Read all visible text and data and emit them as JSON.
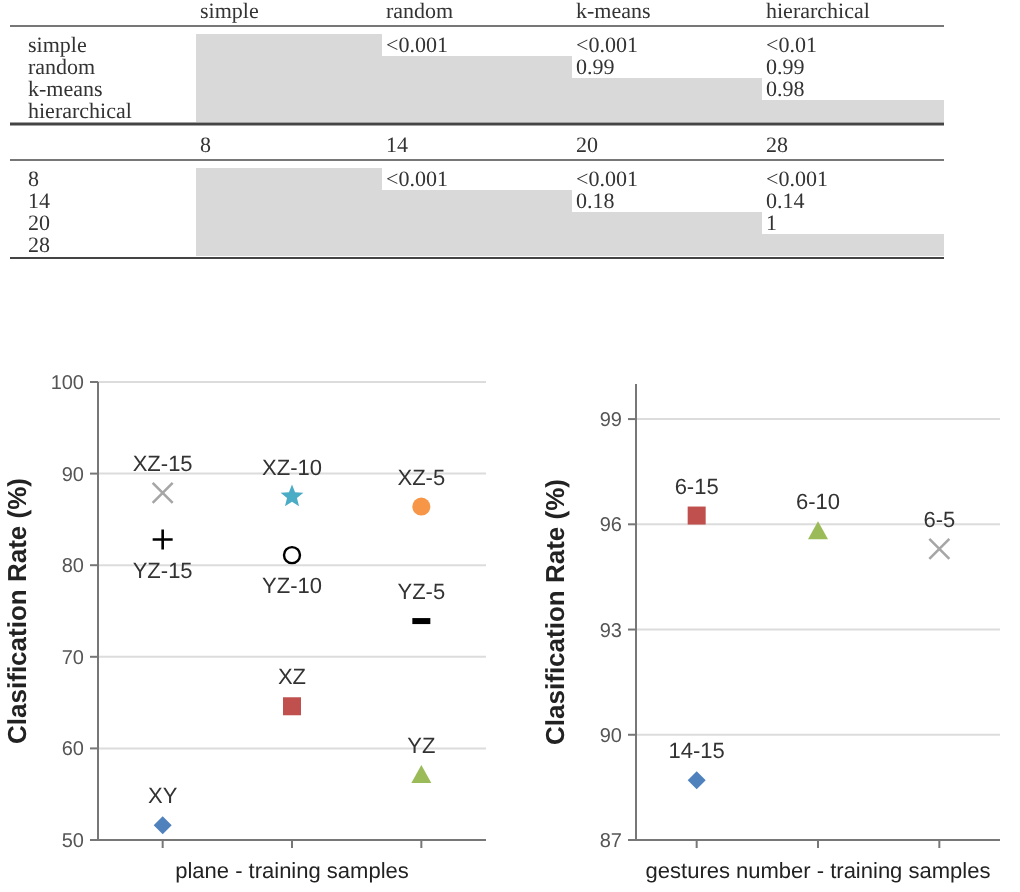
{
  "chart_data": [
    {
      "type": "other",
      "categories": [
        "simple",
        "random",
        "k-means",
        "hierarchical"
      ],
      "y_categories": [
        "simple",
        "random",
        "k-means",
        "hierarchical"
      ],
      "cell_labels": [
        [
          null,
          "<0.001",
          "<0.001",
          "<0.01"
        ],
        [
          null,
          null,
          "0.99",
          "0.99"
        ],
        [
          null,
          null,
          null,
          "0.98"
        ],
        [
          null,
          null,
          null,
          null
        ]
      ]
    },
    {
      "type": "other",
      "categories": [
        "8",
        "14",
        "20",
        "28"
      ],
      "y_categories": [
        "8",
        "14",
        "20",
        "28"
      ],
      "cell_labels": [
        [
          null,
          "<0.001",
          "<0.001",
          "<0.001"
        ],
        [
          null,
          null,
          "0.18",
          "0.14"
        ],
        [
          null,
          null,
          null,
          "1"
        ],
        [
          null,
          null,
          null,
          null
        ]
      ]
    },
    {
      "type": "scatter",
      "xlabel": "plane - training samples",
      "ylabel": "Clasification Rate (%)",
      "categories": [
        null,
        null,
        null
      ],
      "ylim": [
        50,
        100
      ],
      "yticks": [
        50,
        60,
        70,
        80,
        90,
        100
      ],
      "grid": "y",
      "series": [
        {
          "name": "XZ-15",
          "color": "#a6a6a6",
          "marker": "cross",
          "values": [
            87.9,
            null,
            null
          ]
        },
        {
          "name": "YZ-15",
          "color": "#000000",
          "marker": "plus",
          "values": [
            82.8,
            null,
            null
          ]
        },
        {
          "name": "XY",
          "color": "#4f81bd",
          "marker": "diamond",
          "values": [
            51.6,
            null,
            null
          ]
        },
        {
          "name": "XZ-10",
          "color": "#4bacc6",
          "marker": "star",
          "values": [
            null,
            87.5,
            null
          ]
        },
        {
          "name": "YZ-10",
          "color": "#000000",
          "marker": "circle-open",
          "values": [
            null,
            81.1,
            null
          ]
        },
        {
          "name": "XZ",
          "color": "#c0504d",
          "marker": "square",
          "values": [
            null,
            64.6,
            null
          ]
        },
        {
          "name": "XZ-5",
          "color": "#f79646",
          "marker": "circle",
          "values": [
            null,
            null,
            86.4
          ]
        },
        {
          "name": "YZ-5",
          "color": "#000000",
          "values": [
            null,
            null,
            73.9
          ]
        },
        {
          "name": "YZ",
          "color": "#9bbb59",
          "marker": "triangle",
          "values": [
            null,
            null,
            57.1
          ]
        }
      ]
    },
    {
      "type": "scatter",
      "xlabel": "gestures number - training samples",
      "ylabel": "Clasification Rate (%)",
      "categories": [
        null,
        null,
        null
      ],
      "ylim": [
        87,
        100
      ],
      "yticks": [
        87,
        90,
        93,
        96,
        99
      ],
      "grid": "y",
      "series": [
        {
          "name": "6-15",
          "color": "#c0504d",
          "marker": "square",
          "values": [
            96.25,
            null,
            null
          ]
        },
        {
          "name": "14-15",
          "color": "#4f81bd",
          "marker": "diamond",
          "values": [
            88.7,
            null,
            null
          ]
        },
        {
          "name": "6-10",
          "color": "#9bbb59",
          "marker": "triangle",
          "values": [
            null,
            95.8,
            null
          ]
        },
        {
          "name": "6-5",
          "color": "#a6a6a6",
          "marker": "cross",
          "values": [
            null,
            null,
            95.3
          ]
        }
      ]
    }
  ]
}
